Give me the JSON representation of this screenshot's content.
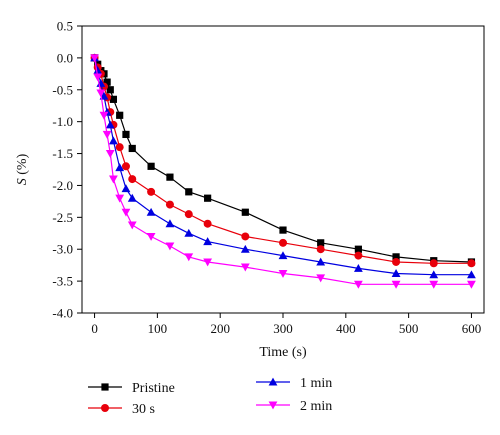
{
  "chart_data": {
    "type": "line",
    "xlabel": "Time (s)",
    "ylabel_symbol": "S",
    "ylabel_unit": " (%)",
    "xlim": [
      -20,
      620
    ],
    "ylim": [
      -4.0,
      0.5
    ],
    "xticks": [
      0,
      100,
      200,
      300,
      400,
      500,
      600
    ],
    "yticks": [
      0.5,
      0.0,
      -0.5,
      -1.0,
      -1.5,
      -2.0,
      -2.5,
      -3.0,
      -3.5,
      -4.0
    ],
    "xtick_labels": [
      "0",
      "100",
      "200",
      "300",
      "400",
      "500",
      "600"
    ],
    "ytick_labels": [
      "0.5",
      "0.0",
      "-0.5",
      "-1.0",
      "-1.5",
      "-2.0",
      "-2.5",
      "-3.0",
      "-3.5",
      "-4.0"
    ],
    "grid": false,
    "legend_position": "bottom",
    "series": [
      {
        "name": "Pristine",
        "color": "#000000",
        "marker": "square",
        "x": [
          0,
          5,
          10,
          15,
          20,
          25,
          30,
          40,
          50,
          60,
          90,
          120,
          150,
          180,
          240,
          300,
          360,
          420,
          480,
          540,
          600
        ],
        "y": [
          0.0,
          -0.1,
          -0.2,
          -0.25,
          -0.38,
          -0.5,
          -0.65,
          -0.9,
          -1.2,
          -1.42,
          -1.7,
          -1.87,
          -2.1,
          -2.2,
          -2.42,
          -2.7,
          -2.9,
          -3.0,
          -3.12,
          -3.18,
          -3.2
        ]
      },
      {
        "name": "30 s",
        "color": "#e8000b",
        "marker": "circle",
        "x": [
          0,
          5,
          10,
          15,
          20,
          25,
          30,
          40,
          50,
          60,
          90,
          120,
          150,
          180,
          240,
          300,
          360,
          420,
          480,
          540,
          600
        ],
        "y": [
          0.0,
          -0.15,
          -0.25,
          -0.45,
          -0.62,
          -0.85,
          -1.05,
          -1.4,
          -1.7,
          -1.9,
          -2.1,
          -2.3,
          -2.45,
          -2.6,
          -2.8,
          -2.9,
          -3.0,
          -3.1,
          -3.2,
          -3.22,
          -3.22
        ]
      },
      {
        "name": "1 min",
        "color": "#0000e0",
        "marker": "triangle-up",
        "x": [
          0,
          5,
          10,
          15,
          20,
          25,
          30,
          40,
          50,
          60,
          90,
          120,
          150,
          180,
          240,
          300,
          360,
          420,
          480,
          540,
          600
        ],
        "y": [
          0.0,
          -0.2,
          -0.4,
          -0.6,
          -0.85,
          -1.05,
          -1.3,
          -1.72,
          -2.05,
          -2.2,
          -2.42,
          -2.6,
          -2.75,
          -2.88,
          -3.0,
          -3.1,
          -3.2,
          -3.3,
          -3.38,
          -3.4,
          -3.4
        ]
      },
      {
        "name": "2 min",
        "color": "#ff00ff",
        "marker": "triangle-down",
        "x": [
          0,
          5,
          10,
          15,
          20,
          25,
          30,
          40,
          50,
          60,
          90,
          120,
          150,
          180,
          240,
          300,
          360,
          420,
          480,
          540,
          600
        ],
        "y": [
          0.0,
          -0.3,
          -0.55,
          -0.9,
          -1.2,
          -1.5,
          -1.9,
          -2.2,
          -2.42,
          -2.62,
          -2.8,
          -2.95,
          -3.12,
          -3.2,
          -3.28,
          -3.38,
          -3.45,
          -3.55,
          -3.55,
          -3.55,
          -3.55
        ]
      }
    ]
  }
}
